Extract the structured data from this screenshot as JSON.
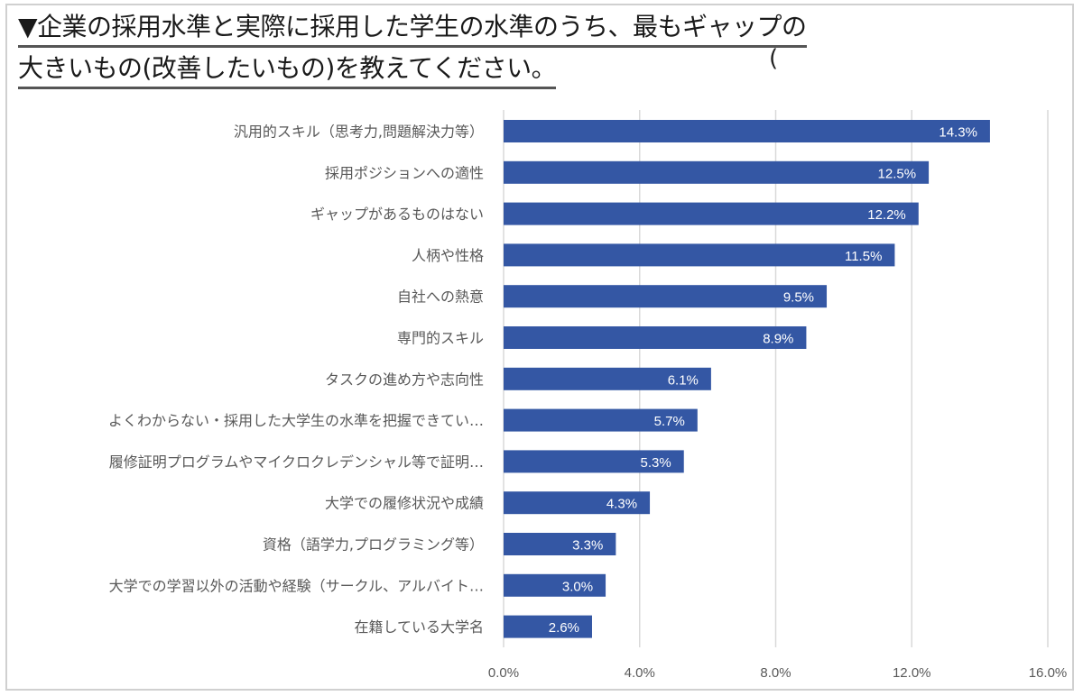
{
  "title": {
    "line1": "▼企業の採用水準と実際に採用した学生の水準のうち、最もギャップの",
    "line2": "大きいもの(改善したいもの)を教えてください。",
    "stray_mark": "("
  },
  "colors": {
    "bar": "#3457a4",
    "grid": "#d9d9d9",
    "label": "#595959"
  },
  "chart_data": {
    "type": "bar",
    "orientation": "horizontal",
    "categories": [
      "汎用的スキル（思考力,問題解決力等）",
      "採用ポジションへの適性",
      "ギャップがあるものはない",
      "人柄や性格",
      "自社への熱意",
      "専門的スキル",
      "タスクの進め方や志向性",
      "よくわからない・採用した大学生の水準を把握できてい…",
      "履修証明プログラムやマイクロクレデンシャル等で証明…",
      "大学での履修状況や成績",
      "資格（語学力,プログラミング等）",
      "大学での学習以外の活動や経験（サークル、アルバイト…",
      "在籍している大学名"
    ],
    "values": [
      14.3,
      12.5,
      12.2,
      11.5,
      9.5,
      8.9,
      6.1,
      5.7,
      5.3,
      4.3,
      3.3,
      3.0,
      2.6
    ],
    "value_labels": [
      "14.3%",
      "12.5%",
      "12.2%",
      "11.5%",
      "9.5%",
      "8.9%",
      "6.1%",
      "5.7%",
      "5.3%",
      "4.3%",
      "3.3%",
      "3.0%",
      "2.6%"
    ],
    "xlim": [
      0,
      16
    ],
    "xticks": [
      0,
      4,
      8,
      12,
      16
    ],
    "xtick_labels": [
      "0.0%",
      "4.0%",
      "8.0%",
      "12.0%",
      "16.0%"
    ],
    "grid": "vertical",
    "legend": "none"
  }
}
